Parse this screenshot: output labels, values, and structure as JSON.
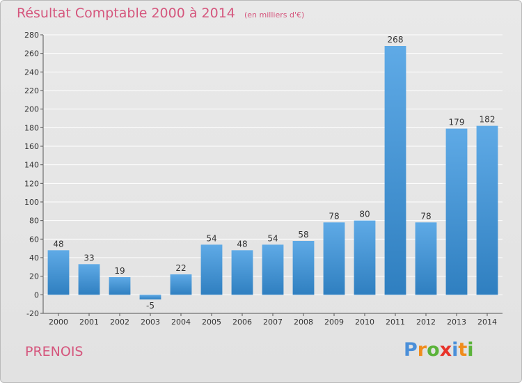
{
  "header": {
    "title": "Résultat Comptable 2000 à 2014",
    "subtitle": "(en milliers d'€)"
  },
  "footer": {
    "commune": "PRENOIS",
    "logo_text": "Proxiti",
    "logo_colors": [
      "#4a8fd9",
      "#f08c1c",
      "#5bb33a",
      "#e8332a",
      "#4a8fd9",
      "#f08c1c",
      "#5bb33a"
    ]
  },
  "colors": {
    "title": "#d5567d",
    "bar_top": "#5faae6",
    "bar_bottom": "#2f7fc0",
    "grid": "#ffffff",
    "axis_text": "#333333"
  },
  "chart_data": {
    "type": "bar",
    "title": "Résultat Comptable 2000 à 2014",
    "subtitle": "(en milliers d'€)",
    "xlabel": "",
    "ylabel": "",
    "categories": [
      "2000",
      "2001",
      "2002",
      "2003",
      "2004",
      "2005",
      "2006",
      "2007",
      "2008",
      "2009",
      "2010",
      "2011",
      "2012",
      "2013",
      "2014"
    ],
    "values": [
      48,
      33,
      19,
      -5,
      22,
      54,
      48,
      54,
      58,
      78,
      80,
      268,
      78,
      179,
      182
    ],
    "ylim": [
      -20,
      280
    ],
    "yticks": [
      -20,
      0,
      20,
      40,
      60,
      80,
      100,
      120,
      140,
      160,
      180,
      200,
      220,
      240,
      260,
      280
    ],
    "grid": true,
    "legend": "none"
  }
}
